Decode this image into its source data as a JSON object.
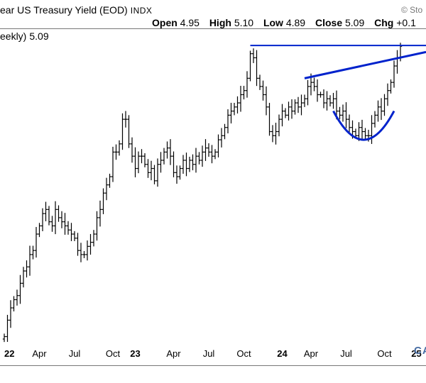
{
  "header": {
    "title": "ear US Treasury Yield (EOD)",
    "symbol": "INDX",
    "brand_top": "© Sto",
    "ohlc": {
      "open_label": "Open",
      "open": "4.95",
      "high_label": "High",
      "high": "5.10",
      "low_label": "Low",
      "low": "4.89",
      "close_label": "Close",
      "close": "5.09",
      "chg_label": "Chg",
      "chg": "+0.1"
    }
  },
  "series_label": {
    "name": "eekly)",
    "value": "5.09"
  },
  "brand_bottom": "CA",
  "chart_data": {
    "type": "line",
    "style": "ohlc-bars",
    "weekly_close": [
      1.55,
      1.75,
      1.9,
      2.0,
      2.05,
      2.2,
      2.35,
      2.4,
      2.55,
      2.6,
      2.8,
      2.9,
      3.05,
      3.1,
      2.95,
      2.9,
      3.1,
      3.0,
      2.95,
      2.9,
      2.85,
      2.8,
      2.75,
      2.6,
      2.55,
      2.55,
      2.65,
      2.7,
      2.8,
      3.0,
      3.1,
      3.3,
      3.4,
      3.5,
      3.8,
      3.8,
      3.9,
      4.2,
      4.2,
      3.9,
      3.75,
      3.6,
      3.75,
      3.75,
      3.65,
      3.55,
      3.6,
      3.45,
      3.65,
      3.7,
      3.8,
      3.85,
      3.75,
      3.55,
      3.5,
      3.6,
      3.7,
      3.6,
      3.7,
      3.65,
      3.75,
      3.7,
      3.8,
      3.85,
      3.8,
      3.75,
      3.8,
      3.95,
      4.0,
      4.1,
      4.25,
      4.3,
      4.35,
      4.4,
      4.5,
      4.55,
      4.7,
      5.0,
      4.95,
      4.7,
      4.6,
      4.5,
      4.35,
      4.05,
      4.0,
      4.05,
      4.2,
      4.3,
      4.25,
      4.35,
      4.3,
      4.4,
      4.35,
      4.4,
      4.45,
      4.6,
      4.65,
      4.6,
      4.5,
      4.5,
      4.4,
      4.45,
      4.4,
      4.45,
      4.3,
      4.25,
      4.3,
      4.2,
      4.1,
      4.05,
      4.0,
      4.1,
      4.05,
      4.0,
      4.0,
      4.15,
      4.25,
      4.35,
      4.3,
      4.45,
      4.55,
      4.65,
      4.85,
      4.95,
      5.09
    ],
    "x_ticks": [
      {
        "label": "22",
        "year": true,
        "week": 0
      },
      {
        "label": "Apr",
        "year": false,
        "week": 11
      },
      {
        "label": "Jul",
        "year": false,
        "week": 22
      },
      {
        "label": "Oct",
        "year": false,
        "week": 34
      },
      {
        "label": "23",
        "year": true,
        "week": 41
      },
      {
        "label": "Apr",
        "year": false,
        "week": 53
      },
      {
        "label": "Jul",
        "year": false,
        "week": 64
      },
      {
        "label": "Oct",
        "year": false,
        "week": 75
      },
      {
        "label": "24",
        "year": true,
        "week": 87
      },
      {
        "label": "Apr",
        "year": false,
        "week": 96
      },
      {
        "label": "Jul",
        "year": false,
        "week": 107
      },
      {
        "label": "Oct",
        "year": false,
        "week": 119
      },
      {
        "label": "25",
        "year": true,
        "week": 129
      }
    ],
    "ylim": [
      1.2,
      5.3
    ],
    "grid": false,
    "annotations": {
      "resistance_line": {
        "from_week": 77,
        "to_week": 132,
        "value": 5.1
      },
      "rising_trendline": {
        "from_week": 94,
        "y_from": 4.7,
        "to_week": 132,
        "y_to": 5.02
      },
      "rounded_bottom": {
        "from_week": 103,
        "to_week": 122,
        "top_value": 4.3,
        "bottom_value": 3.95
      }
    },
    "colors": {
      "bars": "#000000",
      "annotation": "#0022cc"
    }
  }
}
